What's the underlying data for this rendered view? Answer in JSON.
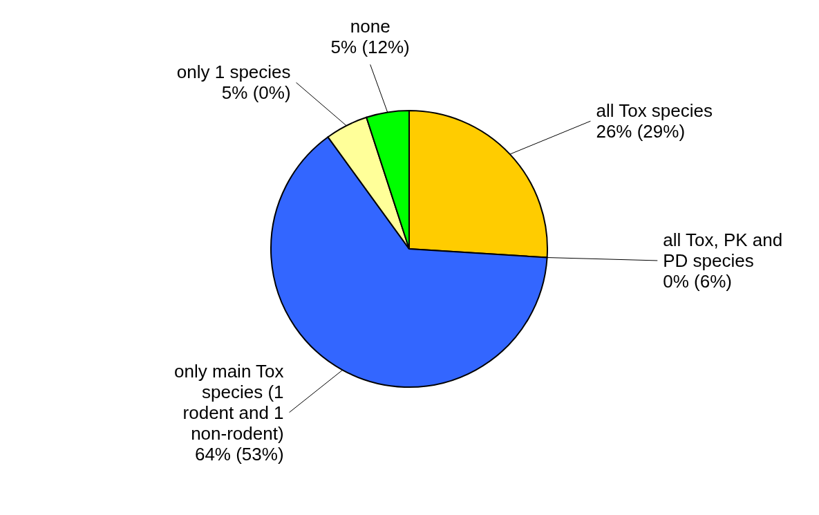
{
  "chart_data": {
    "type": "pie",
    "categories": [
      "all Tox species",
      "all Tox, PK and PD species",
      "only main Tox species (1 rodent and 1 non-rodent)",
      "only 1 species",
      "none"
    ],
    "values": [
      26,
      0,
      64,
      5,
      5
    ],
    "colors": [
      "#ffcc00",
      "#ff9900",
      "#3366ff",
      "#ffff99",
      "#00ff00"
    ],
    "value_labels": [
      "26% (29%)",
      "0% (6%)",
      "64% (53%)",
      "5% (0%)",
      "5% (12%)"
    ]
  }
}
